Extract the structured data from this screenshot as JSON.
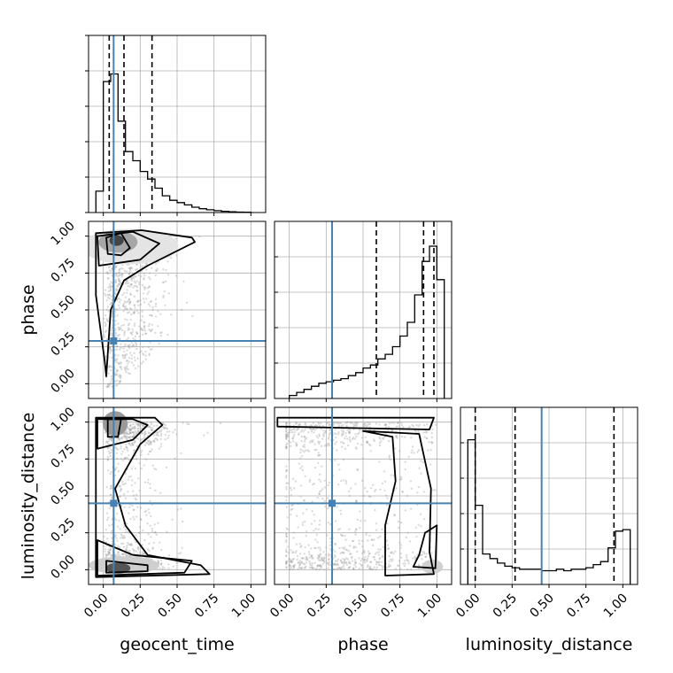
{
  "chart_data": {
    "type": "corner",
    "parameters": [
      "geocent_time",
      "phase",
      "luminosity_distance"
    ],
    "ticks": [
      0.0,
      0.25,
      0.5,
      0.75,
      1.0
    ],
    "tick_labels": [
      "0.00",
      "0.25",
      "0.50",
      "0.75",
      "1.00"
    ],
    "axis_labels": {
      "x": [
        "geocent_time",
        "phase",
        "luminosity_distance"
      ],
      "y": [
        "phase",
        "luminosity_distance"
      ]
    },
    "ranges": [
      [
        -0.1,
        1.1
      ],
      [
        -0.1,
        1.1
      ],
      [
        -0.1,
        1.1
      ]
    ],
    "grid": true,
    "truth_color": "#4682b4",
    "truths": [
      0.07,
      0.29,
      0.45
    ],
    "quantile_lines": [
      [
        0.04,
        0.14,
        0.33
      ],
      [
        0.59,
        0.91,
        0.98
      ],
      [
        0.0,
        0.27,
        0.94
      ]
    ],
    "histograms": [
      {
        "param": "geocent_time",
        "edges": [
          -0.05,
          0.0,
          0.05,
          0.1,
          0.15,
          0.2,
          0.25,
          0.3,
          0.35,
          0.4,
          0.45,
          0.5,
          0.55,
          0.6,
          0.65,
          0.7,
          0.75,
          0.8,
          0.85,
          0.9,
          0.95,
          1.0
        ],
        "values": [
          0.14,
          0.86,
          0.91,
          0.6,
          0.4,
          0.34,
          0.27,
          0.22,
          0.16,
          0.11,
          0.08,
          0.065,
          0.05,
          0.035,
          0.025,
          0.018,
          0.012,
          0.008,
          0.005,
          0.003,
          0.002
        ]
      },
      {
        "param": "phase",
        "edges": [
          0.0,
          0.05,
          0.1,
          0.15,
          0.2,
          0.25,
          0.3,
          0.35,
          0.4,
          0.45,
          0.5,
          0.55,
          0.6,
          0.65,
          0.7,
          0.75,
          0.8,
          0.85,
          0.9,
          0.95,
          1.0,
          1.05
        ],
        "values": [
          0.02,
          0.04,
          0.06,
          0.08,
          0.1,
          0.11,
          0.12,
          0.13,
          0.15,
          0.17,
          0.2,
          0.22,
          0.26,
          0.29,
          0.34,
          0.41,
          0.5,
          0.68,
          0.9,
          1.0,
          0.78
        ]
      },
      {
        "param": "luminosity_distance",
        "edges": [
          -0.05,
          0.0,
          0.05,
          0.1,
          0.15,
          0.2,
          0.25,
          0.3,
          0.35,
          0.4,
          0.45,
          0.5,
          0.55,
          0.6,
          0.65,
          0.7,
          0.75,
          0.8,
          0.85,
          0.9,
          0.95,
          1.0,
          1.05
        ],
        "values": [
          0.95,
          0.52,
          0.2,
          0.17,
          0.14,
          0.12,
          0.11,
          0.1,
          0.1,
          0.1,
          0.09,
          0.09,
          0.1,
          0.09,
          0.1,
          0.1,
          0.11,
          0.13,
          0.15,
          0.24,
          0.35,
          0.36
        ]
      }
    ],
    "panels_2d": [
      {
        "x": "geocent_time",
        "y": "phase",
        "peak": [
          0.09,
          0.97
        ],
        "truth": [
          0.07,
          0.29
        ]
      },
      {
        "x": "geocent_time",
        "y": "luminosity_distance",
        "peaks": [
          [
            0.08,
            1.0
          ],
          [
            0.1,
            0.01
          ]
        ],
        "truth": [
          0.07,
          0.45
        ]
      },
      {
        "x": "phase",
        "y": "luminosity_distance",
        "peak": [
          1.0,
          0.0
        ],
        "truth": [
          0.29,
          0.45
        ]
      }
    ]
  }
}
